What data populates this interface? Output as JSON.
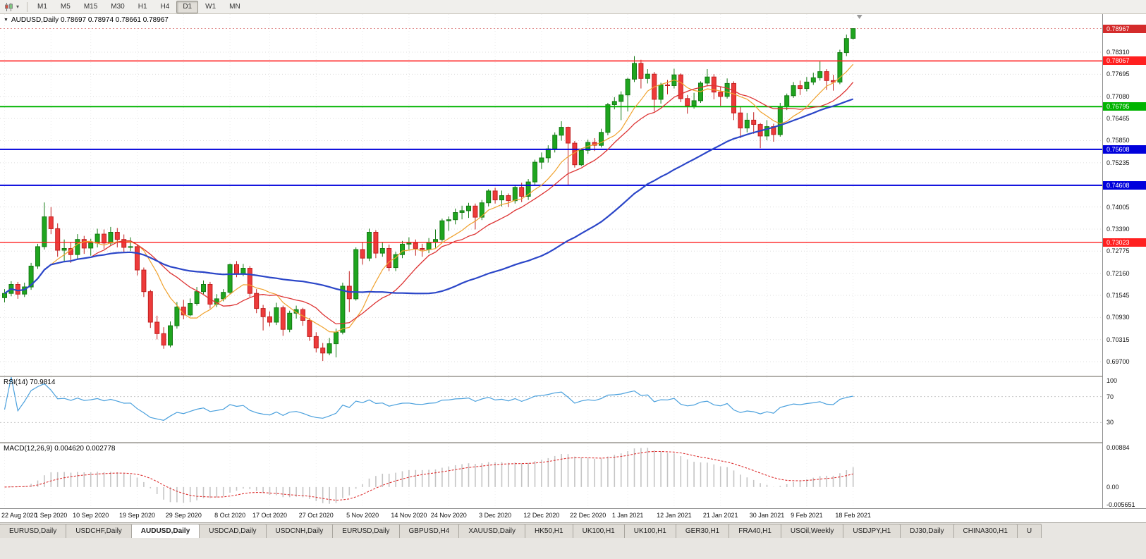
{
  "toolbar": {
    "timeframes": [
      "M1",
      "M5",
      "M15",
      "M30",
      "H1",
      "H4",
      "D1",
      "W1",
      "MN"
    ],
    "active_timeframe": "D1"
  },
  "chart": {
    "title": "AUDUSD,Daily 0.78697 0.78974 0.78661 0.78967",
    "symbol": "AUDUSD",
    "period": "Daily",
    "open": "0.78697",
    "high": "0.78974",
    "low": "0.78661",
    "close": "0.78967"
  },
  "indicators": {
    "rsi": {
      "label": "RSI(14) 70.9814",
      "axis": [
        "100",
        "70",
        "30"
      ],
      "levels": [
        70,
        30
      ]
    },
    "macd": {
      "label": "MACD(12,26,9) 0.004620 0.002778",
      "axis": [
        "0.00884",
        "0.00",
        "-0.005651"
      ]
    }
  },
  "colors": {
    "candle_up": "#1fa51f",
    "candle_up_border": "#157a15",
    "candle_down": "#ed3b3b",
    "candle_down_border": "#c21f1f",
    "rsi_line": "#4aa0dd",
    "macd_hist": "#c4c4c4",
    "macd_signal": "#dd3333",
    "price_box": "#d42b2b",
    "grid": "#dcdcdc"
  },
  "tabs": {
    "items": [
      "EURUSD,Daily",
      "USDCHF,Daily",
      "AUDUSD,Daily",
      "USDCAD,Daily",
      "USDCNH,Daily",
      "EURUSD,Daily",
      "GBPUSD,H4",
      "XAUUSD,Daily",
      "HK50,H1",
      "UK100,H1",
      "UK100,H1",
      "GER30,H1",
      "FRA40,H1",
      "USOil,Weekly",
      "USDJPY,H1",
      "DJ30,Daily",
      "CHINA300,H1",
      "U"
    ],
    "active_index": 2
  },
  "chart_data": {
    "type": "candlestick",
    "title": "AUDUSD,Daily",
    "price_range": {
      "top": 0.7937,
      "bottom": 0.6931
    },
    "y_ticks": [
      "0.78310",
      "0.77695",
      "0.77080",
      "0.76465",
      "0.75850",
      "0.75235",
      "0.74005",
      "0.73390",
      "0.72775",
      "0.72160",
      "0.71545",
      "0.70930",
      "0.70315",
      "0.69700"
    ],
    "hlines": [
      {
        "price": 0.78067,
        "label": "0.78067",
        "color": "#ff2020",
        "width": 1.6
      },
      {
        "price": 0.76795,
        "label": "0.76795",
        "color": "#00b400",
        "width": 2
      },
      {
        "price": 0.75608,
        "label": "0.75608",
        "color": "#0000dc",
        "width": 2
      },
      {
        "price": 0.74608,
        "label": "0.74608",
        "color": "#0000dc",
        "width": 2
      },
      {
        "price": 0.73023,
        "label": "0.73023",
        "color": "#ff2020",
        "width": 1.4
      }
    ],
    "current_price": {
      "value": 0.78967,
      "label": "0.78967"
    },
    "moving_averages": [
      {
        "period": 8,
        "color": "#f0a22e",
        "width": 1.2
      },
      {
        "period": 14,
        "color": "#dd3333",
        "width": 1.3
      },
      {
        "period": 45,
        "color": "#2b46c8",
        "width": 2.2
      }
    ],
    "x_labels": [
      "22 Aug 2020",
      "1 Sep 2020",
      "10 Sep 2020",
      "19 Sep 2020",
      "29 Sep 2020",
      "8 Oct 2020",
      "17 Oct 2020",
      "27 Oct 2020",
      "5 Nov 2020",
      "14 Nov 2020",
      "24 Nov 2020",
      "3 Dec 2020",
      "12 Dec 2020",
      "22 Dec 2020",
      "1 Jan 2021",
      "12 Jan 2021",
      "21 Jan 2021",
      "30 Jan 2021",
      "9 Feb 2021",
      "18 Feb 2021"
    ],
    "ohlc": [
      [
        0.7148,
        0.7172,
        0.7135,
        0.716
      ],
      [
        0.716,
        0.7194,
        0.7152,
        0.7185
      ],
      [
        0.7185,
        0.7192,
        0.7145,
        0.7158
      ],
      [
        0.7158,
        0.719,
        0.715,
        0.7178
      ],
      [
        0.7178,
        0.7245,
        0.717,
        0.7236
      ],
      [
        0.7236,
        0.7298,
        0.7228,
        0.729
      ],
      [
        0.729,
        0.7413,
        0.7282,
        0.7373
      ],
      [
        0.7373,
        0.74,
        0.7325,
        0.734
      ],
      [
        0.734,
        0.7355,
        0.7262,
        0.728
      ],
      [
        0.728,
        0.731,
        0.725,
        0.7285
      ],
      [
        0.7285,
        0.7302,
        0.7245,
        0.7268
      ],
      [
        0.7268,
        0.7325,
        0.7255,
        0.731
      ],
      [
        0.731,
        0.732,
        0.727,
        0.7286
      ],
      [
        0.7286,
        0.7312,
        0.7265,
        0.73
      ],
      [
        0.73,
        0.734,
        0.7288,
        0.7325
      ],
      [
        0.7325,
        0.7338,
        0.7284,
        0.73
      ],
      [
        0.73,
        0.7345,
        0.7292,
        0.733
      ],
      [
        0.733,
        0.7342,
        0.7288,
        0.731
      ],
      [
        0.731,
        0.7324,
        0.7276,
        0.7288
      ],
      [
        0.7288,
        0.7316,
        0.7278,
        0.729
      ],
      [
        0.729,
        0.7296,
        0.721,
        0.7225
      ],
      [
        0.7225,
        0.7232,
        0.715,
        0.7165
      ],
      [
        0.7165,
        0.717,
        0.7064,
        0.708
      ],
      [
        0.708,
        0.7098,
        0.7032,
        0.7048
      ],
      [
        0.7048,
        0.7066,
        0.7006,
        0.7016
      ],
      [
        0.7016,
        0.7082,
        0.701,
        0.707
      ],
      [
        0.707,
        0.7136,
        0.7062,
        0.7122
      ],
      [
        0.7122,
        0.7142,
        0.7088,
        0.71
      ],
      [
        0.71,
        0.7146,
        0.7096,
        0.7132
      ],
      [
        0.7132,
        0.7178,
        0.7126,
        0.7165
      ],
      [
        0.7165,
        0.7196,
        0.7158,
        0.7185
      ],
      [
        0.7185,
        0.7192,
        0.7118,
        0.713
      ],
      [
        0.713,
        0.7158,
        0.7122,
        0.7145
      ],
      [
        0.7145,
        0.7172,
        0.7138,
        0.7163
      ],
      [
        0.7163,
        0.7243,
        0.7158,
        0.724
      ],
      [
        0.724,
        0.725,
        0.7205,
        0.7215
      ],
      [
        0.7215,
        0.7242,
        0.7208,
        0.723
      ],
      [
        0.723,
        0.7236,
        0.715,
        0.716
      ],
      [
        0.716,
        0.7172,
        0.7105,
        0.7118
      ],
      [
        0.7118,
        0.7128,
        0.7057,
        0.7095
      ],
      [
        0.7095,
        0.711,
        0.7068,
        0.708
      ],
      [
        0.708,
        0.7134,
        0.7072,
        0.712
      ],
      [
        0.712,
        0.7126,
        0.7042,
        0.706
      ],
      [
        0.706,
        0.7112,
        0.7052,
        0.7105
      ],
      [
        0.7105,
        0.7126,
        0.709,
        0.7115
      ],
      [
        0.7115,
        0.712,
        0.707,
        0.7085
      ],
      [
        0.7085,
        0.7092,
        0.7028,
        0.704
      ],
      [
        0.704,
        0.7052,
        0.6996,
        0.7008
      ],
      [
        0.7008,
        0.7022,
        0.6972,
        0.6994
      ],
      [
        0.6994,
        0.7036,
        0.6988,
        0.702
      ],
      [
        0.702,
        0.7062,
        0.6982,
        0.7052
      ],
      [
        0.7052,
        0.719,
        0.7046,
        0.718
      ],
      [
        0.718,
        0.7222,
        0.7108,
        0.7145
      ],
      [
        0.7145,
        0.7288,
        0.714,
        0.7282
      ],
      [
        0.7282,
        0.7302,
        0.724,
        0.7258
      ],
      [
        0.7258,
        0.734,
        0.725,
        0.733
      ],
      [
        0.733,
        0.7336,
        0.7258,
        0.7272
      ],
      [
        0.7272,
        0.7302,
        0.7262,
        0.7285
      ],
      [
        0.7285,
        0.7296,
        0.7222,
        0.7232
      ],
      [
        0.7232,
        0.7276,
        0.7222,
        0.7268
      ],
      [
        0.7268,
        0.7306,
        0.7258,
        0.7297
      ],
      [
        0.7297,
        0.7316,
        0.7282,
        0.73
      ],
      [
        0.73,
        0.731,
        0.7265,
        0.7285
      ],
      [
        0.7285,
        0.7298,
        0.7262,
        0.7282
      ],
      [
        0.7282,
        0.7314,
        0.7272,
        0.7302
      ],
      [
        0.7302,
        0.7338,
        0.7287,
        0.731
      ],
      [
        0.731,
        0.7368,
        0.7304,
        0.7362
      ],
      [
        0.7362,
        0.7374,
        0.7334,
        0.7365
      ],
      [
        0.7365,
        0.7396,
        0.7352,
        0.7385
      ],
      [
        0.7385,
        0.7404,
        0.7366,
        0.739
      ],
      [
        0.739,
        0.7412,
        0.737,
        0.7403
      ],
      [
        0.7403,
        0.741,
        0.7338,
        0.7372
      ],
      [
        0.7372,
        0.742,
        0.7364,
        0.7412
      ],
      [
        0.7412,
        0.745,
        0.7402,
        0.7445
      ],
      [
        0.7445,
        0.7454,
        0.741,
        0.742
      ],
      [
        0.742,
        0.7446,
        0.7402,
        0.7432
      ],
      [
        0.7432,
        0.7438,
        0.74,
        0.7418
      ],
      [
        0.7418,
        0.7462,
        0.741,
        0.7455
      ],
      [
        0.7455,
        0.7468,
        0.7414,
        0.743
      ],
      [
        0.743,
        0.7478,
        0.742,
        0.747
      ],
      [
        0.747,
        0.7532,
        0.7462,
        0.7525
      ],
      [
        0.7525,
        0.7552,
        0.7506,
        0.7537
      ],
      [
        0.7537,
        0.7572,
        0.7524,
        0.7562
      ],
      [
        0.7562,
        0.7608,
        0.7552,
        0.76
      ],
      [
        0.76,
        0.7639,
        0.7585,
        0.7622
      ],
      [
        0.7622,
        0.7624,
        0.7462,
        0.7578
      ],
      [
        0.7578,
        0.7584,
        0.751,
        0.7518
      ],
      [
        0.7518,
        0.7564,
        0.7514,
        0.7558
      ],
      [
        0.7558,
        0.7588,
        0.7548,
        0.758
      ],
      [
        0.758,
        0.7592,
        0.7556,
        0.7572
      ],
      [
        0.7572,
        0.7618,
        0.7566,
        0.7608
      ],
      [
        0.7608,
        0.769,
        0.76,
        0.7685
      ],
      [
        0.7685,
        0.7706,
        0.7672,
        0.7694
      ],
      [
        0.7694,
        0.7722,
        0.7642,
        0.7712
      ],
      [
        0.7712,
        0.776,
        0.7666,
        0.7756
      ],
      [
        0.7756,
        0.782,
        0.7748,
        0.78
      ],
      [
        0.78,
        0.781,
        0.773,
        0.7758
      ],
      [
        0.7758,
        0.7784,
        0.7744,
        0.777
      ],
      [
        0.777,
        0.7776,
        0.7666,
        0.77
      ],
      [
        0.77,
        0.7746,
        0.7688,
        0.774
      ],
      [
        0.774,
        0.7754,
        0.7714,
        0.7738
      ],
      [
        0.7738,
        0.7785,
        0.773,
        0.7768
      ],
      [
        0.7768,
        0.7772,
        0.7692,
        0.7702
      ],
      [
        0.7702,
        0.7712,
        0.766,
        0.7682
      ],
      [
        0.7682,
        0.7718,
        0.7674,
        0.7696
      ],
      [
        0.7696,
        0.775,
        0.769,
        0.7745
      ],
      [
        0.7745,
        0.7784,
        0.7736,
        0.7762
      ],
      [
        0.7762,
        0.777,
        0.77,
        0.772
      ],
      [
        0.772,
        0.7736,
        0.7682,
        0.7708
      ],
      [
        0.7708,
        0.7758,
        0.7702,
        0.7744
      ],
      [
        0.7744,
        0.775,
        0.7642,
        0.7662
      ],
      [
        0.7662,
        0.768,
        0.7592,
        0.762
      ],
      [
        0.762,
        0.7662,
        0.7608,
        0.7642
      ],
      [
        0.7642,
        0.7664,
        0.7604,
        0.763
      ],
      [
        0.763,
        0.7634,
        0.7564,
        0.7598
      ],
      [
        0.7598,
        0.7642,
        0.7586,
        0.7624
      ],
      [
        0.7624,
        0.7632,
        0.7582,
        0.7602
      ],
      [
        0.7602,
        0.769,
        0.7596,
        0.768
      ],
      [
        0.768,
        0.7716,
        0.767,
        0.771
      ],
      [
        0.771,
        0.7748,
        0.7704,
        0.7738
      ],
      [
        0.7738,
        0.7752,
        0.7712,
        0.773
      ],
      [
        0.773,
        0.7762,
        0.7722,
        0.7748
      ],
      [
        0.7748,
        0.7774,
        0.774,
        0.776
      ],
      [
        0.776,
        0.7805,
        0.7752,
        0.7777
      ],
      [
        0.7777,
        0.7784,
        0.7726,
        0.7752
      ],
      [
        0.7752,
        0.7768,
        0.7724,
        0.7748
      ],
      [
        0.7748,
        0.7838,
        0.7742,
        0.783
      ],
      [
        0.783,
        0.788,
        0.782,
        0.7869
      ],
      [
        0.78697,
        0.78974,
        0.78661,
        0.78967
      ]
    ]
  }
}
